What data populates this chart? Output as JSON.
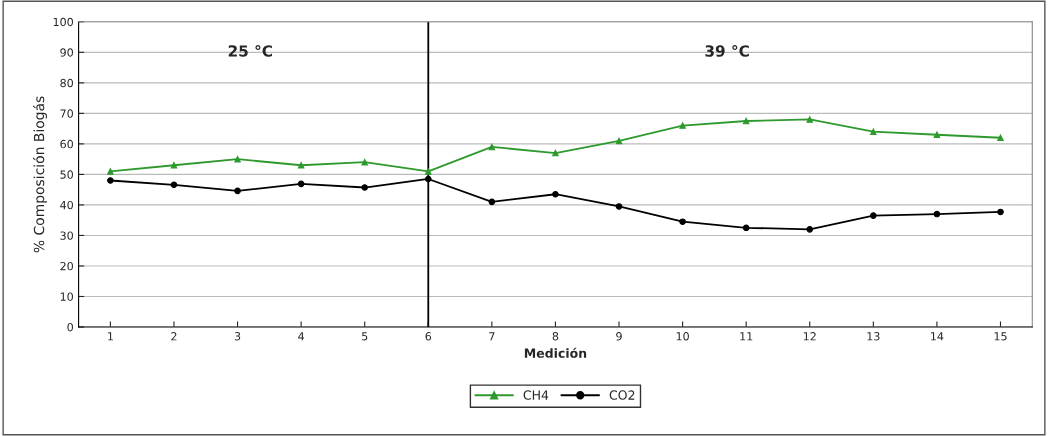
{
  "chart_data": {
    "type": "line",
    "xlabel": "Medición",
    "ylabel": "% Composición Biogás",
    "x": [
      1,
      2,
      3,
      4,
      5,
      6,
      7,
      8,
      9,
      10,
      11,
      12,
      13,
      14,
      15
    ],
    "xlim": [
      0.5,
      15.5
    ],
    "xticks": [
      1,
      2,
      3,
      4,
      5,
      6,
      7,
      8,
      9,
      10,
      11,
      12,
      13,
      14,
      15
    ],
    "ylim": [
      0,
      100
    ],
    "yticks": [
      0,
      10,
      20,
      30,
      40,
      50,
      60,
      70,
      80,
      90,
      100
    ],
    "grid": "y",
    "legend": "bottom",
    "line_style": "solid",
    "series": [
      {
        "name": "CH4",
        "color": "#2e9a2e",
        "marker": "triangle",
        "values": [
          51,
          53,
          55,
          53,
          54,
          51,
          59,
          57,
          61,
          66,
          67.5,
          68,
          64,
          63,
          62
        ]
      },
      {
        "name": "CO2",
        "color": "#000000",
        "marker": "circle",
        "values": [
          48,
          46.6,
          44.6,
          46.9,
          45.7,
          48.5,
          41,
          43.5,
          39.5,
          34.5,
          32.5,
          32,
          36.5,
          37,
          37.7
        ]
      }
    ],
    "ref_lines": [
      {
        "axis": "x",
        "value": 6,
        "color": "#000000"
      }
    ],
    "annotations": [
      "25 °C",
      "39 °C"
    ]
  }
}
